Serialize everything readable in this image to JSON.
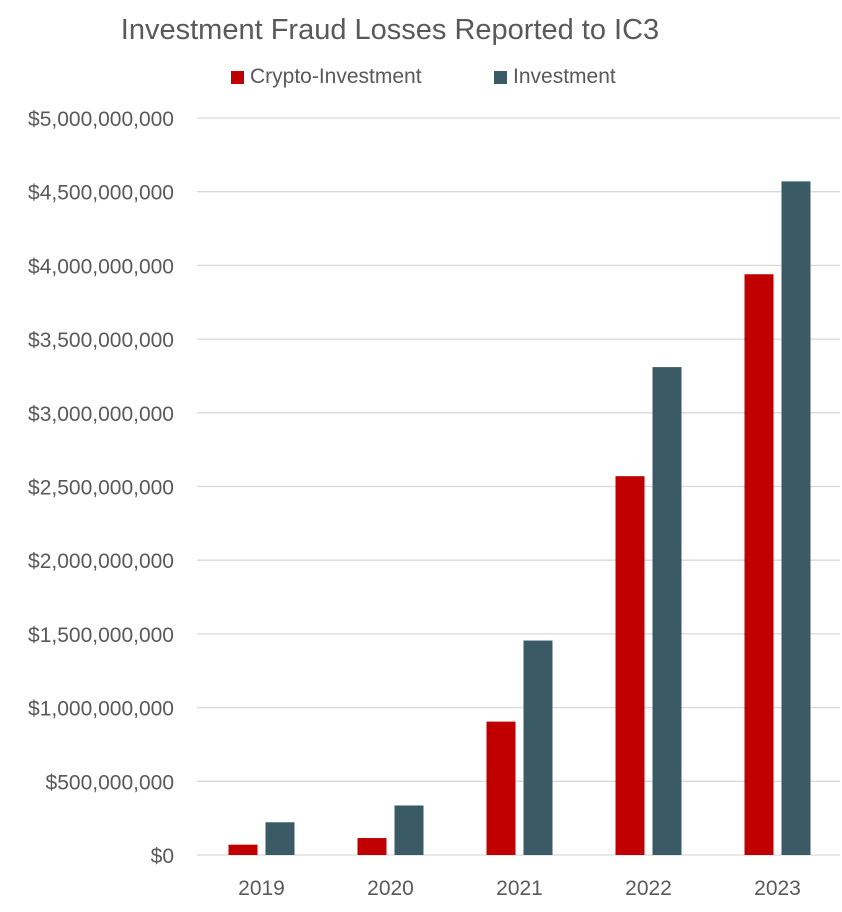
{
  "chart_data": {
    "type": "bar",
    "title": "Investment Fraud Losses Reported to IC3",
    "categories": [
      "2019",
      "2020",
      "2021",
      "2022",
      "2023"
    ],
    "series": [
      {
        "name": "Crypto-Investment",
        "color": "#c00000",
        "values": [
          70000000,
          115000000,
          905000000,
          2570000000,
          3940000000
        ]
      },
      {
        "name": "Investment",
        "color": "#3a5a66",
        "values": [
          222000000,
          336000000,
          1455000000,
          3310000000,
          4570000000
        ]
      }
    ],
    "ylim": [
      0,
      5000000000
    ],
    "yticks": [
      0,
      500000000,
      1000000000,
      1500000000,
      2000000000,
      2500000000,
      3000000000,
      3500000000,
      4000000000,
      4500000000,
      5000000000
    ],
    "ytick_labels": [
      "$0",
      "$500,000,000",
      "$1,000,000,000",
      "$1,500,000,000",
      "$2,000,000,000",
      "$2,500,000,000",
      "$3,000,000,000",
      "$3,500,000,000",
      "$4,000,000,000",
      "$4,500,000,000",
      "$5,000,000,000"
    ],
    "grid": true,
    "legend_position": "top"
  }
}
